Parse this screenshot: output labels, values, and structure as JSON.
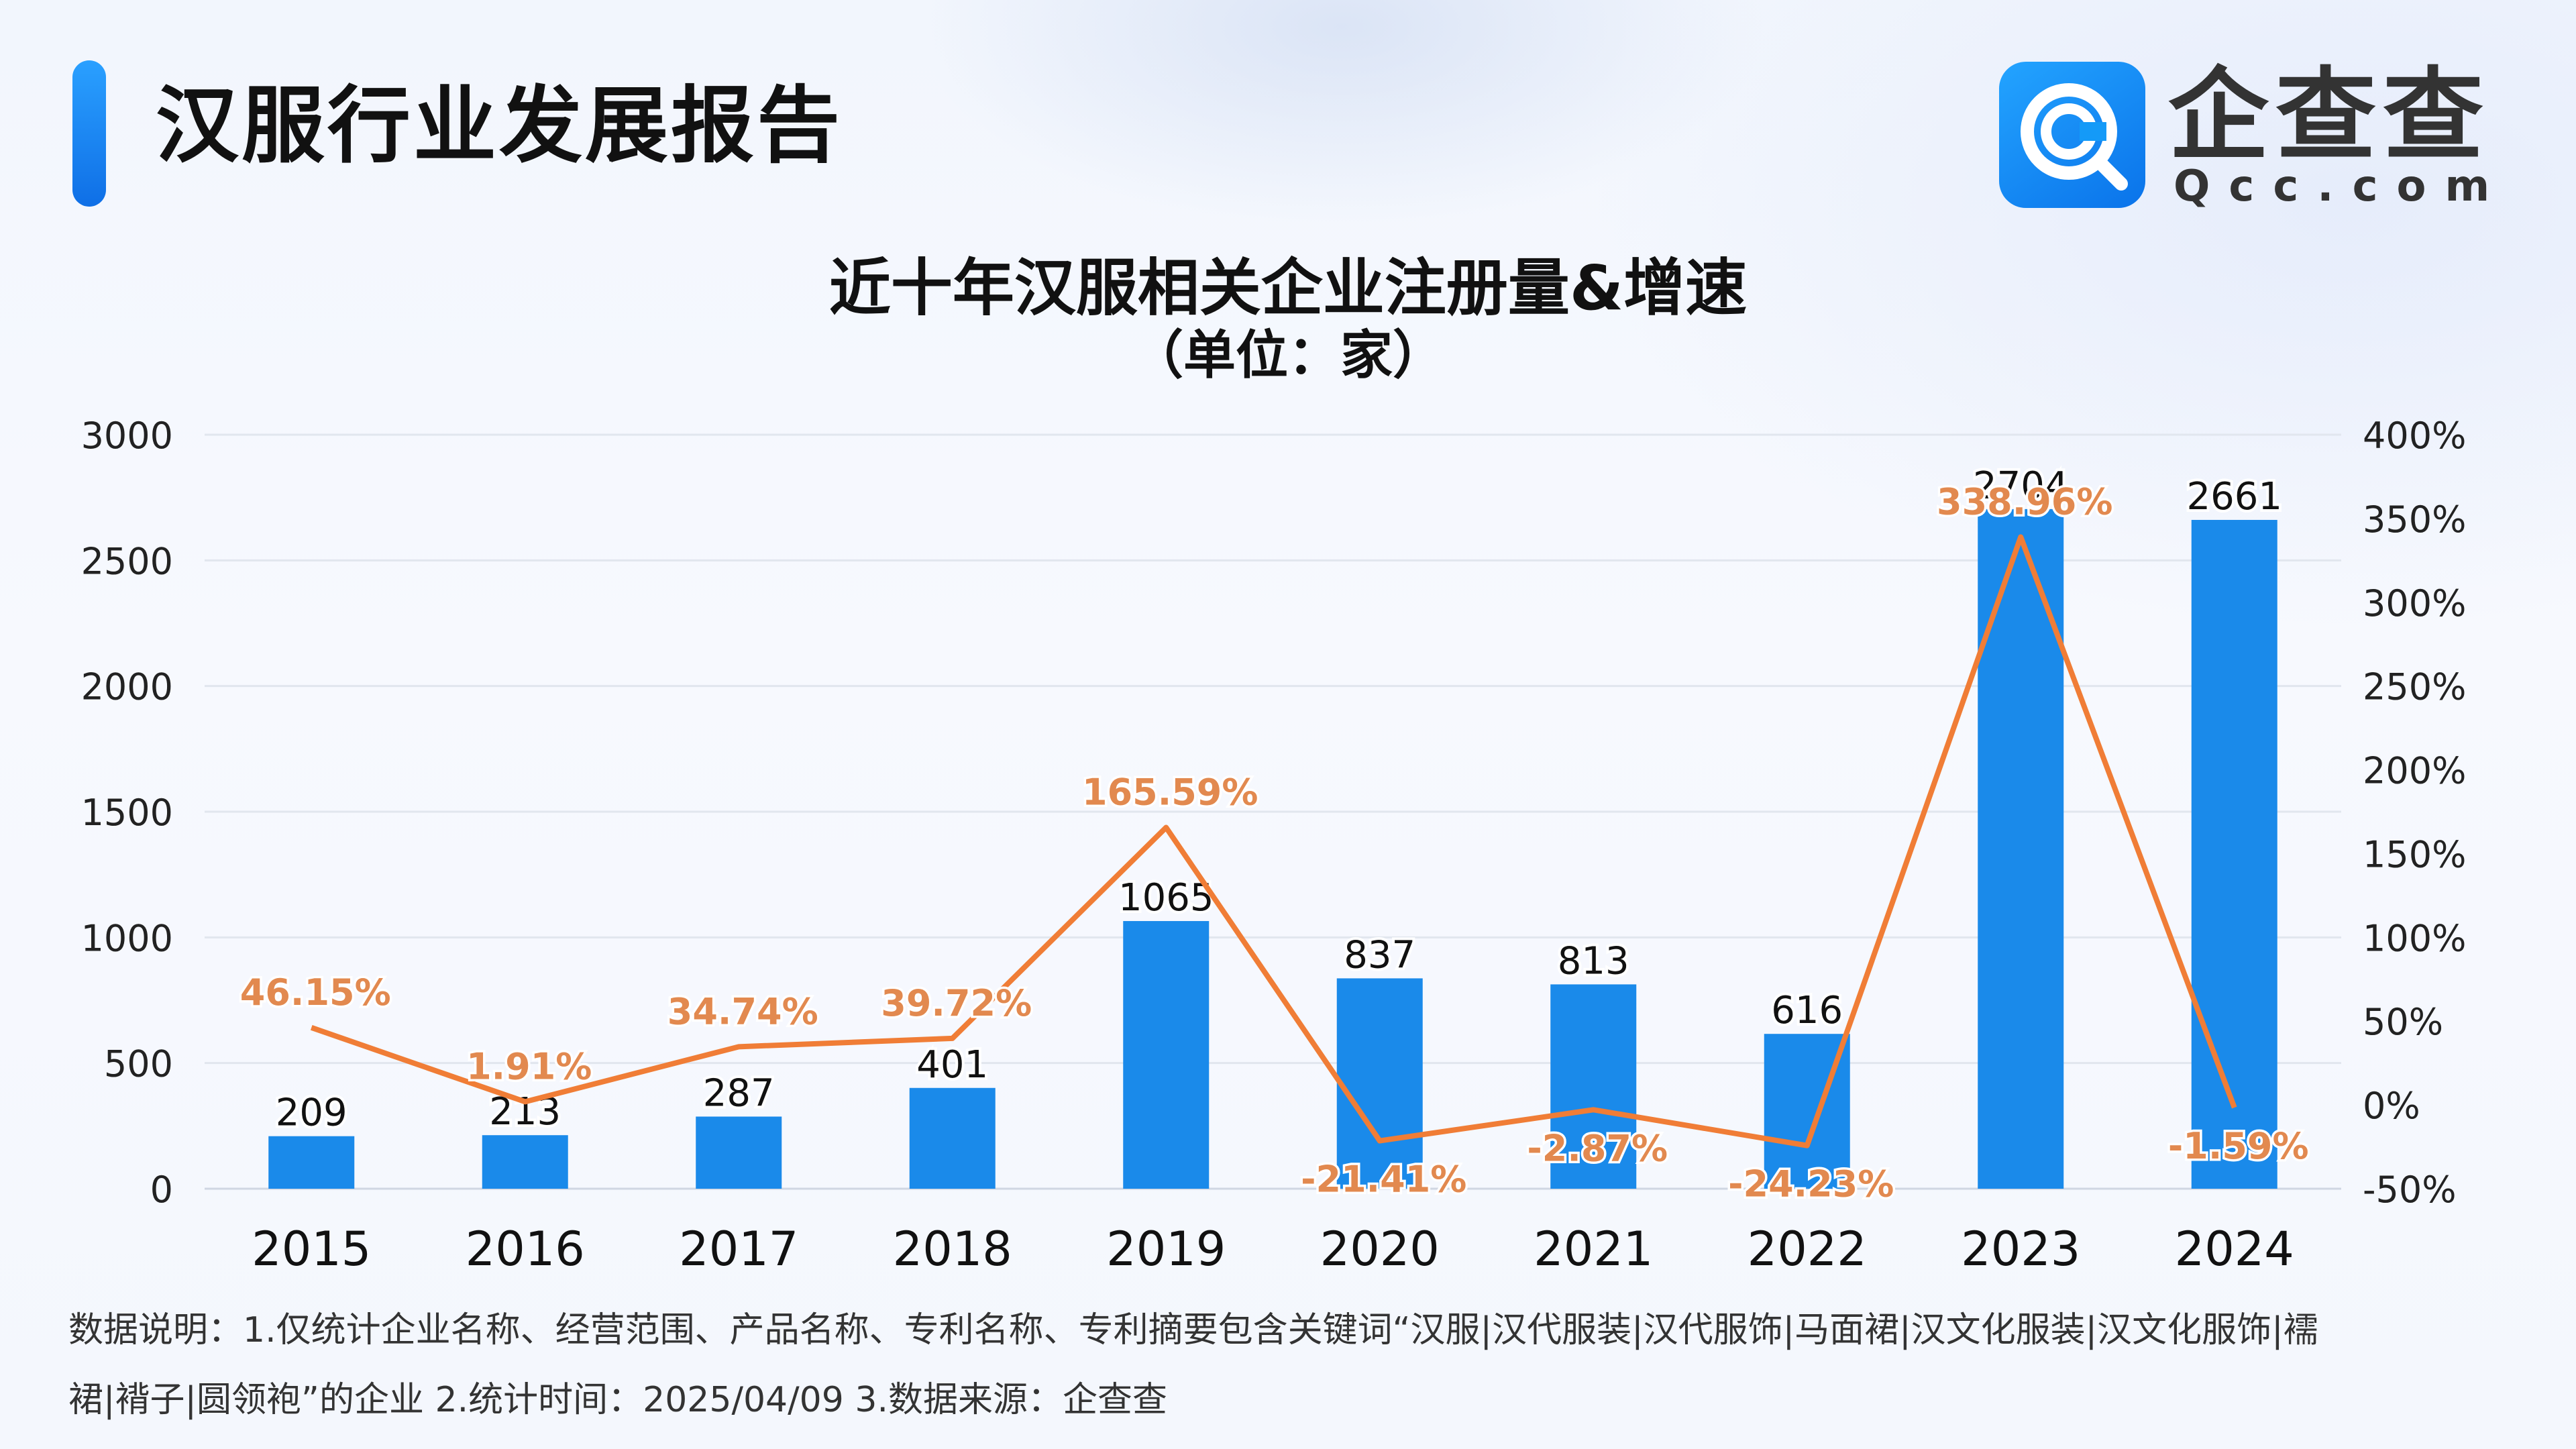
{
  "header": {
    "title": "汉服行业发展报告",
    "logo_name": "企查查",
    "logo_domain": "Qcc.com",
    "logo_icon": "qcc-logo-icon"
  },
  "colors": {
    "bar": "#1a8aea",
    "line": "#f07d36",
    "pct_label": "#e2894f",
    "accent": "#1580f2"
  },
  "chart_data": {
    "type": "bar",
    "title": "近十年汉服相关企业注册量&增速",
    "subtitle": "（单位：家）",
    "categories": [
      "2015",
      "2016",
      "2017",
      "2018",
      "2019",
      "2020",
      "2021",
      "2022",
      "2023",
      "2024"
    ],
    "series": [
      {
        "type": "bar",
        "axis": "left",
        "values": [
          209,
          213,
          287,
          401,
          1065,
          837,
          813,
          616,
          2704,
          2661
        ],
        "labels": [
          "209",
          "213",
          "287",
          "401",
          "1065",
          "837",
          "813",
          "616",
          "2704",
          "2661"
        ]
      },
      {
        "type": "line",
        "axis": "right",
        "values": [
          46.15,
          1.91,
          34.74,
          39.72,
          165.59,
          -21.41,
          -2.87,
          -24.23,
          338.96,
          -1.59
        ],
        "labels": [
          "46.15%",
          "1.91%",
          "34.74%",
          "39.72%",
          "165.59%",
          "-21.41%",
          "-2.87%",
          "-24.23%",
          "338.96%",
          "-1.59%"
        ]
      }
    ],
    "ylim": [
      0,
      3000
    ],
    "yticks": [
      "0",
      "500",
      "1000",
      "1500",
      "2000",
      "2500",
      "3000"
    ],
    "y2lim": [
      -50,
      400
    ],
    "y2ticks": [
      "-50%",
      "0%",
      "50%",
      "100%",
      "150%",
      "200%",
      "250%",
      "300%",
      "350%",
      "400%"
    ],
    "grid": true
  },
  "notes": {
    "line1": "数据说明：1.仅统计企业名称、经营范围、产品名称、专利名称、专利摘要包含关键词“汉服|汉代服装|汉代服饰|马面裙|汉文化服装|汉文化服饰|襦",
    "line2": "裙|褙子|圆领袍”的企业   2.统计时间：2025/04/09    3.数据来源：企查查"
  }
}
